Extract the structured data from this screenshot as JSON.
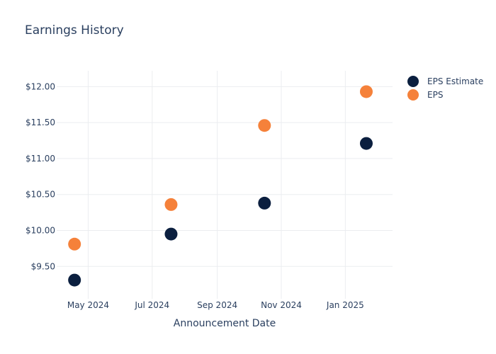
{
  "chart_data": {
    "type": "scatter",
    "title": "Earnings History",
    "xlabel": "Announcement Date",
    "ylabel": "",
    "x_ticks": [
      {
        "date": "2024-05-01",
        "label": "May 2024"
      },
      {
        "date": "2024-07-01",
        "label": "Jul 2024"
      },
      {
        "date": "2024-09-01",
        "label": "Sep 2024"
      },
      {
        "date": "2024-11-01",
        "label": "Nov 2024"
      },
      {
        "date": "2025-01-01",
        "label": "Jan 2025"
      }
    ],
    "y_ticks": [
      {
        "value": 9.5,
        "label": "$9.50"
      },
      {
        "value": 10.0,
        "label": "$10.00"
      },
      {
        "value": 10.5,
        "label": "$10.50"
      },
      {
        "value": 11.0,
        "label": "$11.00"
      },
      {
        "value": 11.5,
        "label": "$11.50"
      },
      {
        "value": 12.0,
        "label": "$12.00"
      }
    ],
    "xlim": [
      "2024-04-01",
      "2025-02-15"
    ],
    "ylim": [
      9.05,
      12.22
    ],
    "grid": true,
    "legend_position": "top-right",
    "series": [
      {
        "name": "EPS Estimate",
        "color": "#0b1f3f",
        "points": [
          {
            "x": "2024-04-18",
            "y": 9.31
          },
          {
            "x": "2024-07-19",
            "y": 9.95
          },
          {
            "x": "2024-10-16",
            "y": 10.38
          },
          {
            "x": "2025-01-21",
            "y": 11.21
          }
        ]
      },
      {
        "name": "EPS",
        "color": "#f5813a",
        "points": [
          {
            "x": "2024-04-18",
            "y": 9.81
          },
          {
            "x": "2024-07-19",
            "y": 10.36
          },
          {
            "x": "2024-10-16",
            "y": 11.46
          },
          {
            "x": "2025-01-21",
            "y": 11.93
          }
        ]
      }
    ]
  }
}
